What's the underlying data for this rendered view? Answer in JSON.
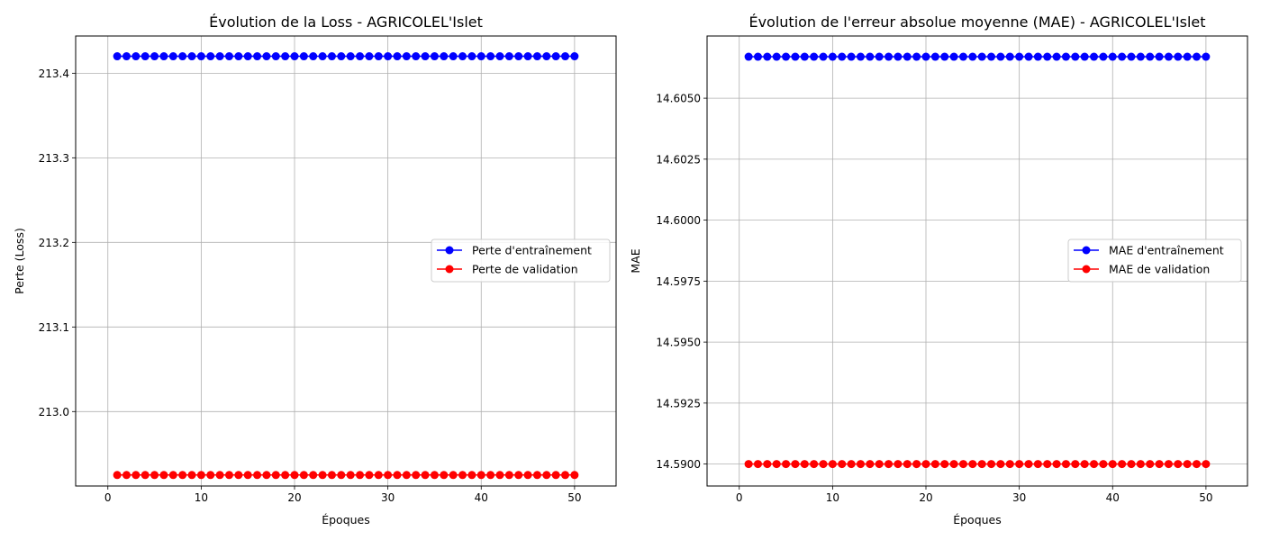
{
  "chart_data": [
    {
      "type": "line",
      "title": "Évolution de la Loss - AGRICOLEL'Islet",
      "xlabel": "Époques",
      "ylabel": "Perte (Loss)",
      "xlim": [
        -3.45,
        54.45
      ],
      "ylim": [
        212.912,
        213.444
      ],
      "xticks": [
        0,
        10,
        20,
        30,
        40,
        50
      ],
      "yticks": [
        213.0,
        213.1,
        213.2,
        213.3,
        213.4
      ],
      "ytick_labels": [
        "213.0",
        "213.1",
        "213.2",
        "213.3",
        "213.4"
      ],
      "grid": true,
      "legend_position": "center-right",
      "epochs": {
        "start": 1,
        "end": 50
      },
      "series": [
        {
          "name": "Perte d'entraînement",
          "color": "#0000ff",
          "marker": "circle",
          "value": 213.42
        },
        {
          "name": "Perte de validation",
          "color": "#ff0000",
          "marker": "circle",
          "value": 212.925
        }
      ]
    },
    {
      "type": "line",
      "title": "Évolution de l'erreur absolue moyenne (MAE) - AGRICOLEL'Islet",
      "xlabel": "Époques",
      "ylabel": "MAE",
      "xlim": [
        -3.45,
        54.45
      ],
      "ylim": [
        14.5891,
        14.60755
      ],
      "xticks": [
        0,
        10,
        20,
        30,
        40,
        50
      ],
      "yticks": [
        14.59,
        14.5925,
        14.595,
        14.5975,
        14.6,
        14.6025,
        14.605
      ],
      "ytick_labels": [
        "14.5900",
        "14.5925",
        "14.5950",
        "14.5975",
        "14.6000",
        "14.6025",
        "14.6050"
      ],
      "grid": true,
      "legend_position": "center-right",
      "epochs": {
        "start": 1,
        "end": 50
      },
      "series": [
        {
          "name": "MAE d'entraînement",
          "color": "#0000ff",
          "marker": "circle",
          "value": 14.6067
        },
        {
          "name": "MAE de validation",
          "color": "#ff0000",
          "marker": "circle",
          "value": 14.59
        }
      ]
    }
  ]
}
